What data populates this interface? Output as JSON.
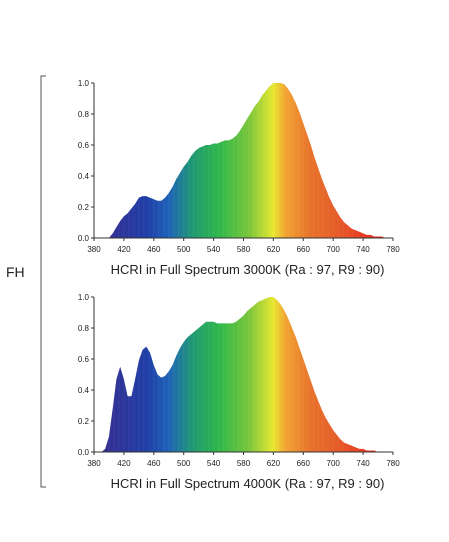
{
  "side_label": "FH",
  "spectrum_colors": [
    "#3a2a8c",
    "#1f3fa8",
    "#1f62b8",
    "#1f9a72",
    "#2fb84a",
    "#7cc63a",
    "#e8e830",
    "#f2a432",
    "#e8742b",
    "#e55a28",
    "#e83a22",
    "#ee2020"
  ],
  "chart_data": [
    {
      "type": "area",
      "title": "HCRI in Full Spectrum 3000K (Ra : 97, R9 : 90)",
      "xlim": [
        380,
        780
      ],
      "ylim": [
        0,
        1.0
      ],
      "x_ticks": [
        380,
        420,
        460,
        500,
        540,
        580,
        620,
        660,
        700,
        740,
        780
      ],
      "y_ticks": [
        "0.0",
        "0.2",
        "0.4",
        "0.6",
        "0.8",
        "1.0"
      ],
      "x": [
        400,
        405,
        410,
        415,
        420,
        425,
        430,
        435,
        440,
        445,
        450,
        455,
        460,
        465,
        470,
        475,
        480,
        485,
        490,
        495,
        500,
        505,
        510,
        515,
        520,
        525,
        530,
        535,
        540,
        545,
        550,
        555,
        560,
        565,
        570,
        575,
        580,
        585,
        590,
        595,
        600,
        605,
        610,
        615,
        620,
        625,
        630,
        635,
        640,
        645,
        650,
        655,
        660,
        665,
        670,
        675,
        680,
        685,
        690,
        695,
        700,
        705,
        710,
        715,
        720,
        725,
        730,
        735,
        740,
        745,
        750,
        755,
        760,
        765,
        770,
        775,
        780
      ],
      "y": [
        0.0,
        0.03,
        0.07,
        0.11,
        0.14,
        0.16,
        0.19,
        0.22,
        0.26,
        0.27,
        0.27,
        0.26,
        0.25,
        0.24,
        0.24,
        0.26,
        0.29,
        0.33,
        0.38,
        0.42,
        0.46,
        0.49,
        0.53,
        0.56,
        0.58,
        0.59,
        0.6,
        0.6,
        0.61,
        0.61,
        0.62,
        0.63,
        0.63,
        0.64,
        0.66,
        0.69,
        0.73,
        0.77,
        0.81,
        0.85,
        0.88,
        0.92,
        0.95,
        0.98,
        1.0,
        1.0,
        1.0,
        0.99,
        0.96,
        0.92,
        0.87,
        0.81,
        0.74,
        0.67,
        0.6,
        0.52,
        0.45,
        0.38,
        0.32,
        0.26,
        0.21,
        0.17,
        0.13,
        0.1,
        0.08,
        0.06,
        0.05,
        0.04,
        0.03,
        0.02,
        0.02,
        0.01,
        0.01,
        0.01,
        0.0,
        0.0,
        0.0
      ]
    },
    {
      "type": "area",
      "title": "HCRI in Full Spectrum 4000K (Ra : 97, R9 : 90)",
      "xlim": [
        380,
        780
      ],
      "ylim": [
        0,
        1.0
      ],
      "x_ticks": [
        380,
        420,
        460,
        500,
        540,
        580,
        620,
        660,
        700,
        740,
        780
      ],
      "y_ticks": [
        "0.0",
        "0.2",
        "0.4",
        "0.6",
        "0.8",
        "1.0"
      ],
      "x": [
        390,
        395,
        400,
        405,
        410,
        415,
        420,
        425,
        430,
        435,
        440,
        445,
        450,
        455,
        460,
        465,
        470,
        475,
        480,
        485,
        490,
        495,
        500,
        505,
        510,
        515,
        520,
        525,
        530,
        535,
        540,
        545,
        550,
        555,
        560,
        565,
        570,
        575,
        580,
        585,
        590,
        595,
        600,
        605,
        610,
        615,
        620,
        625,
        630,
        635,
        640,
        645,
        650,
        655,
        660,
        665,
        670,
        675,
        680,
        685,
        690,
        695,
        700,
        705,
        710,
        715,
        720,
        725,
        730,
        735,
        740,
        745,
        750,
        755,
        760,
        765,
        770,
        775,
        780
      ],
      "y": [
        0.0,
        0.02,
        0.1,
        0.28,
        0.47,
        0.55,
        0.47,
        0.36,
        0.36,
        0.47,
        0.59,
        0.66,
        0.68,
        0.64,
        0.56,
        0.5,
        0.48,
        0.49,
        0.52,
        0.56,
        0.62,
        0.67,
        0.71,
        0.74,
        0.76,
        0.78,
        0.8,
        0.82,
        0.84,
        0.84,
        0.84,
        0.83,
        0.83,
        0.83,
        0.83,
        0.83,
        0.84,
        0.86,
        0.88,
        0.91,
        0.93,
        0.95,
        0.97,
        0.98,
        0.99,
        1.0,
        1.0,
        0.98,
        0.95,
        0.91,
        0.86,
        0.8,
        0.74,
        0.67,
        0.6,
        0.53,
        0.46,
        0.39,
        0.33,
        0.27,
        0.22,
        0.18,
        0.14,
        0.11,
        0.08,
        0.06,
        0.05,
        0.04,
        0.03,
        0.02,
        0.02,
        0.01,
        0.01,
        0.01,
        0.0,
        0.0,
        0.0,
        0.0,
        0.0
      ]
    }
  ]
}
